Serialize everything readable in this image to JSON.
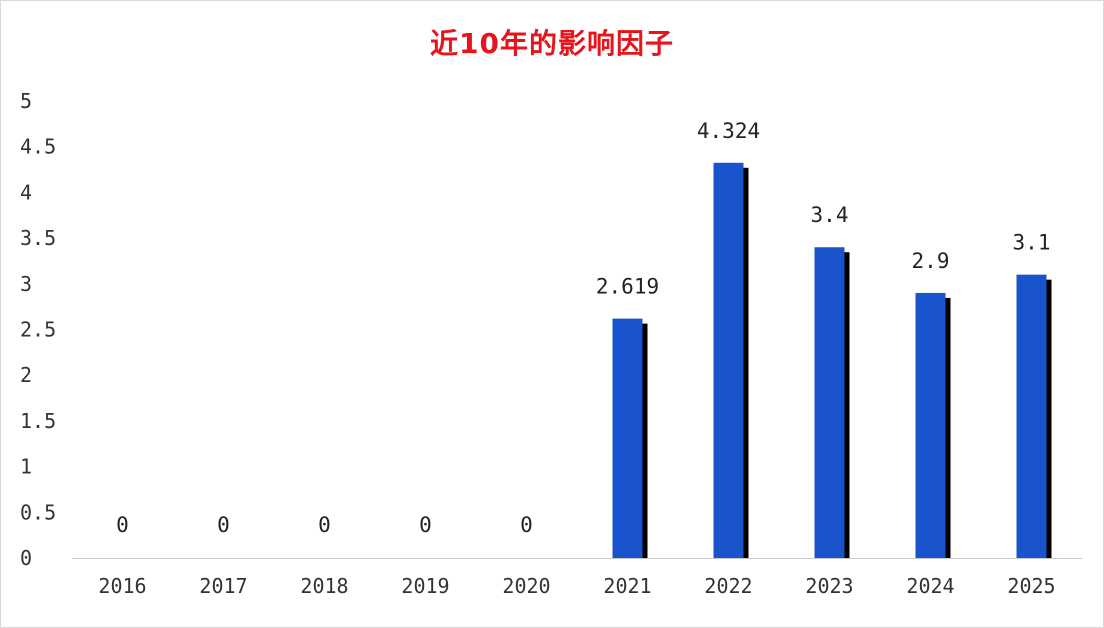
{
  "chart_data": {
    "type": "bar",
    "title": "近10年的影响因子",
    "categories": [
      "2016",
      "2017",
      "2018",
      "2019",
      "2020",
      "2021",
      "2022",
      "2023",
      "2024",
      "2025"
    ],
    "values": [
      0,
      0,
      0,
      0,
      0,
      2.619,
      4.324,
      3.4,
      2.9,
      3.1
    ],
    "data_labels": [
      "0",
      "0",
      "0",
      "0",
      "0",
      "2.619",
      "4.324",
      "3.4",
      "2.9",
      "3.1"
    ],
    "y_ticks": [
      "0",
      "0.5",
      "1",
      "1.5",
      "2",
      "2.5",
      "3",
      "3.5",
      "4",
      "4.5",
      "5"
    ],
    "ylim": [
      0,
      5
    ],
    "grid": false,
    "colors": {
      "bar": "#1a54cc",
      "bar_shadow": "#000000",
      "title": "#e8141b",
      "axis": "#c8c8c8"
    }
  }
}
